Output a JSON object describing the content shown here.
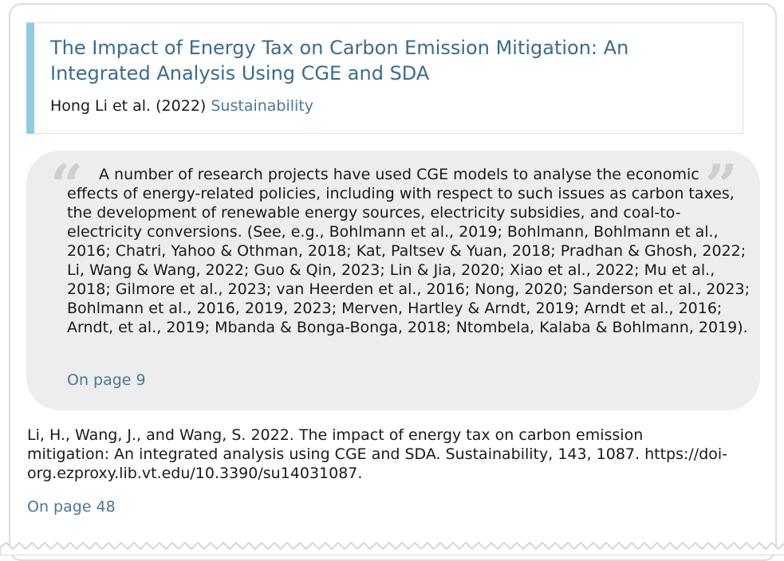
{
  "paper": {
    "title": "The Impact of Energy Tax on Carbon Emission Mitigation: An Integrated Analysis Using CGE and SDA",
    "authors_year": "Hong Li et al. (2022)",
    "journal": "Sustainability"
  },
  "quote": {
    "open_mark": "“",
    "close_mark": "”",
    "text": "A number of research projects have used CGE models to analyse the economic effects of energy-related policies, including with respect to such issues as carbon taxes, the development of renewable energy sources, electricity subsidies, and coal-to-electricity conversions. (See, e.g., Bohlmann et al., 2019; Bohlmann, Bohlmann et al., 2016; Chatri, Yahoo & Othman, 2018; Kat, Paltsev & Yuan, 2018; Pradhan & Ghosh, 2022; Li, Wang & Wang, 2022; Guo & Qin, 2023; Lin & Jia, 2020; Xiao et al., 2022; Mu et al., 2018; Gilmore et al., 2023; van Heerden et al., 2016; Nong, 2020; Sanderson et al., 2023; Bohlmann et al., 2016, 2019, 2023; Merven, Hartley & Arndt, 2019; Arndt et al., 2016; Arndt, et al., 2019; Mbanda & Bonga-Bonga, 2018; Ntombela, Kalaba & Bohlmann, 2019).",
    "page_link": "On page 9"
  },
  "reference": {
    "text": "Li, H., Wang, J., and Wang, S. 2022. The impact of energy tax on carbon emission mitigation: An integrated analysis using CGE and SDA. Sustainability, 143, 1087. https://doi-org.ezproxy.lib.vt.edu/10.3390/su14031087.",
    "page_link": "On page 48"
  }
}
